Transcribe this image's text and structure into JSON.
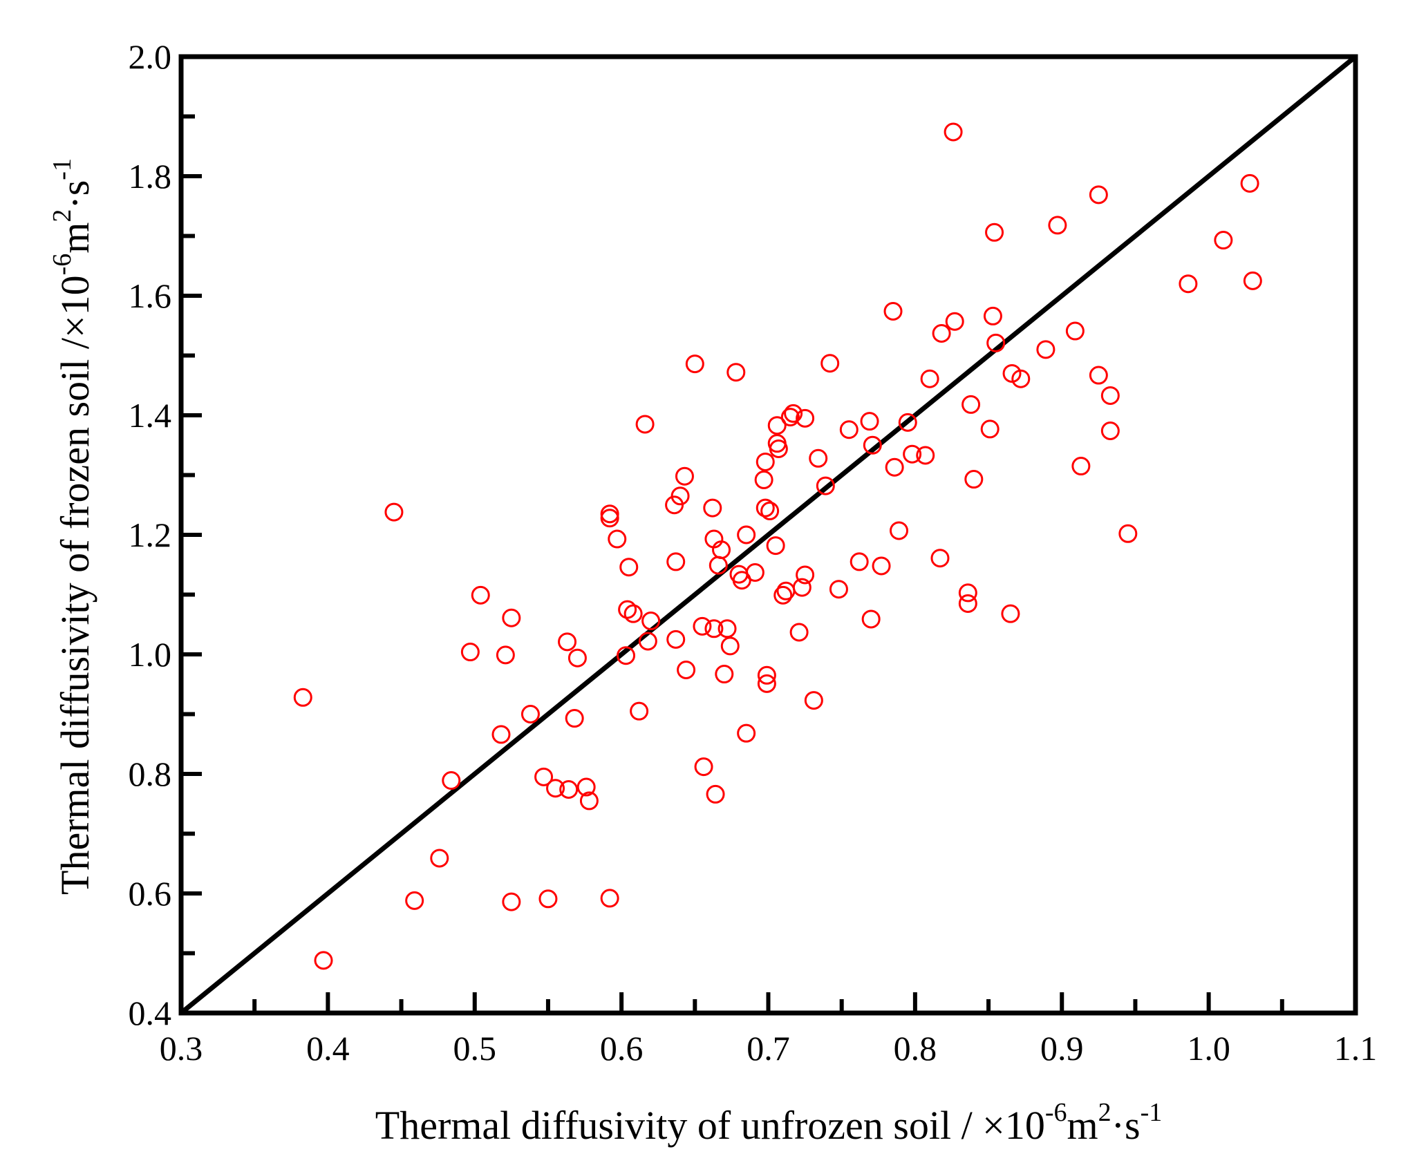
{
  "chart_data": {
    "type": "scatter",
    "title": "",
    "xlabel": {
      "prefix": "Thermal diffusivity of unfrozen soil / ×10",
      "exp1": "-6",
      "mid": "m",
      "exp2": "2",
      "mid2": "·s",
      "exp3": "-1"
    },
    "ylabel": {
      "prefix": "Thermal diffusivity of frozen soil /×10",
      "exp1": "-6",
      "mid": "m",
      "exp2": "2",
      "mid2": "·s",
      "exp3": "-1"
    },
    "xlim": [
      0.3,
      1.1
    ],
    "ylim": [
      0.4,
      2.0
    ],
    "xticks": [
      "0.3",
      "0.4",
      "0.5",
      "0.6",
      "0.7",
      "0.8",
      "0.9",
      "1.0",
      "1.1"
    ],
    "yticks": [
      "0.4",
      "0.6",
      "0.8",
      "1.0",
      "1.2",
      "1.4",
      "1.6",
      "1.8",
      "2.0"
    ],
    "x_minor_step": 0.05,
    "y_minor_step": 0.1,
    "marker_color": "#ff0000",
    "reference_line": {
      "type": "1:1 line",
      "x": [
        0.3,
        1.1
      ],
      "y": [
        0.4,
        2.0
      ],
      "color": "#000000"
    },
    "points": [
      [
        0.383,
        0.928
      ],
      [
        0.397,
        0.488
      ],
      [
        0.445,
        1.238
      ],
      [
        0.459,
        0.588
      ],
      [
        0.476,
        0.659
      ],
      [
        0.484,
        0.789
      ],
      [
        0.497,
        1.004
      ],
      [
        0.504,
        1.099
      ],
      [
        0.518,
        0.866
      ],
      [
        0.521,
        0.999
      ],
      [
        0.525,
        1.061
      ],
      [
        0.525,
        0.586
      ],
      [
        0.538,
        0.9
      ],
      [
        0.547,
        0.795
      ],
      [
        0.55,
        0.591
      ],
      [
        0.555,
        0.776
      ],
      [
        0.563,
        1.021
      ],
      [
        0.564,
        0.774
      ],
      [
        0.568,
        0.893
      ],
      [
        0.57,
        0.994
      ],
      [
        0.576,
        0.778
      ],
      [
        0.578,
        0.755
      ],
      [
        0.592,
        1.228
      ],
      [
        0.592,
        1.235
      ],
      [
        0.592,
        0.592
      ],
      [
        0.597,
        1.193
      ],
      [
        0.603,
        0.998
      ],
      [
        0.604,
        1.075
      ],
      [
        0.605,
        1.146
      ],
      [
        0.608,
        1.068
      ],
      [
        0.612,
        0.905
      ],
      [
        0.616,
        1.385
      ],
      [
        0.618,
        1.022
      ],
      [
        0.62,
        1.056
      ],
      [
        0.636,
        1.25
      ],
      [
        0.637,
        1.155
      ],
      [
        0.637,
        1.025
      ],
      [
        0.64,
        1.265
      ],
      [
        0.643,
        1.298
      ],
      [
        0.644,
        0.974
      ],
      [
        0.65,
        1.486
      ],
      [
        0.655,
        1.047
      ],
      [
        0.656,
        0.812
      ],
      [
        0.662,
        1.245
      ],
      [
        0.663,
        1.043
      ],
      [
        0.663,
        1.193
      ],
      [
        0.664,
        0.766
      ],
      [
        0.666,
        1.149
      ],
      [
        0.668,
        1.175
      ],
      [
        0.67,
        0.967
      ],
      [
        0.672,
        1.043
      ],
      [
        0.674,
        1.014
      ],
      [
        0.678,
        1.472
      ],
      [
        0.68,
        1.134
      ],
      [
        0.682,
        1.124
      ],
      [
        0.685,
        1.2
      ],
      [
        0.685,
        0.868
      ],
      [
        0.691,
        1.137
      ],
      [
        0.697,
        1.292
      ],
      [
        0.698,
        1.322
      ],
      [
        0.698,
        1.245
      ],
      [
        0.699,
        0.951
      ],
      [
        0.699,
        0.965
      ],
      [
        0.701,
        1.24
      ],
      [
        0.705,
        1.182
      ],
      [
        0.706,
        1.383
      ],
      [
        0.706,
        1.353
      ],
      [
        0.707,
        1.344
      ],
      [
        0.71,
        1.099
      ],
      [
        0.712,
        1.106
      ],
      [
        0.715,
        1.397
      ],
      [
        0.717,
        1.403
      ],
      [
        0.721,
        1.037
      ],
      [
        0.723,
        1.112
      ],
      [
        0.725,
        1.133
      ],
      [
        0.725,
        1.395
      ],
      [
        0.731,
        0.923
      ],
      [
        0.734,
        1.328
      ],
      [
        0.739,
        1.282
      ],
      [
        0.742,
        1.487
      ],
      [
        0.748,
        1.109
      ],
      [
        0.755,
        1.376
      ],
      [
        0.762,
        1.155
      ],
      [
        0.769,
        1.39
      ],
      [
        0.77,
        1.059
      ],
      [
        0.771,
        1.35
      ],
      [
        0.777,
        1.148
      ],
      [
        0.785,
        1.574
      ],
      [
        0.786,
        1.313
      ],
      [
        0.789,
        1.207
      ],
      [
        0.795,
        1.388
      ],
      [
        0.798,
        1.335
      ],
      [
        0.807,
        1.333
      ],
      [
        0.81,
        1.461
      ],
      [
        0.817,
        1.161
      ],
      [
        0.818,
        1.537
      ],
      [
        0.826,
        1.874
      ],
      [
        0.827,
        1.557
      ],
      [
        0.836,
        1.103
      ],
      [
        0.836,
        1.085
      ],
      [
        0.838,
        1.418
      ],
      [
        0.84,
        1.293
      ],
      [
        0.851,
        1.377
      ],
      [
        0.853,
        1.566
      ],
      [
        0.854,
        1.706
      ],
      [
        0.855,
        1.521
      ],
      [
        0.865,
        1.068
      ],
      [
        0.866,
        1.47
      ],
      [
        0.872,
        1.461
      ],
      [
        0.889,
        1.51
      ],
      [
        0.897,
        1.718
      ],
      [
        0.909,
        1.541
      ],
      [
        0.913,
        1.315
      ],
      [
        0.925,
        1.769
      ],
      [
        0.925,
        1.467
      ],
      [
        0.933,
        1.433
      ],
      [
        0.933,
        1.374
      ],
      [
        0.945,
        1.202
      ],
      [
        0.986,
        1.62
      ],
      [
        1.01,
        1.693
      ],
      [
        1.028,
        1.788
      ],
      [
        1.03,
        1.625
      ]
    ]
  }
}
